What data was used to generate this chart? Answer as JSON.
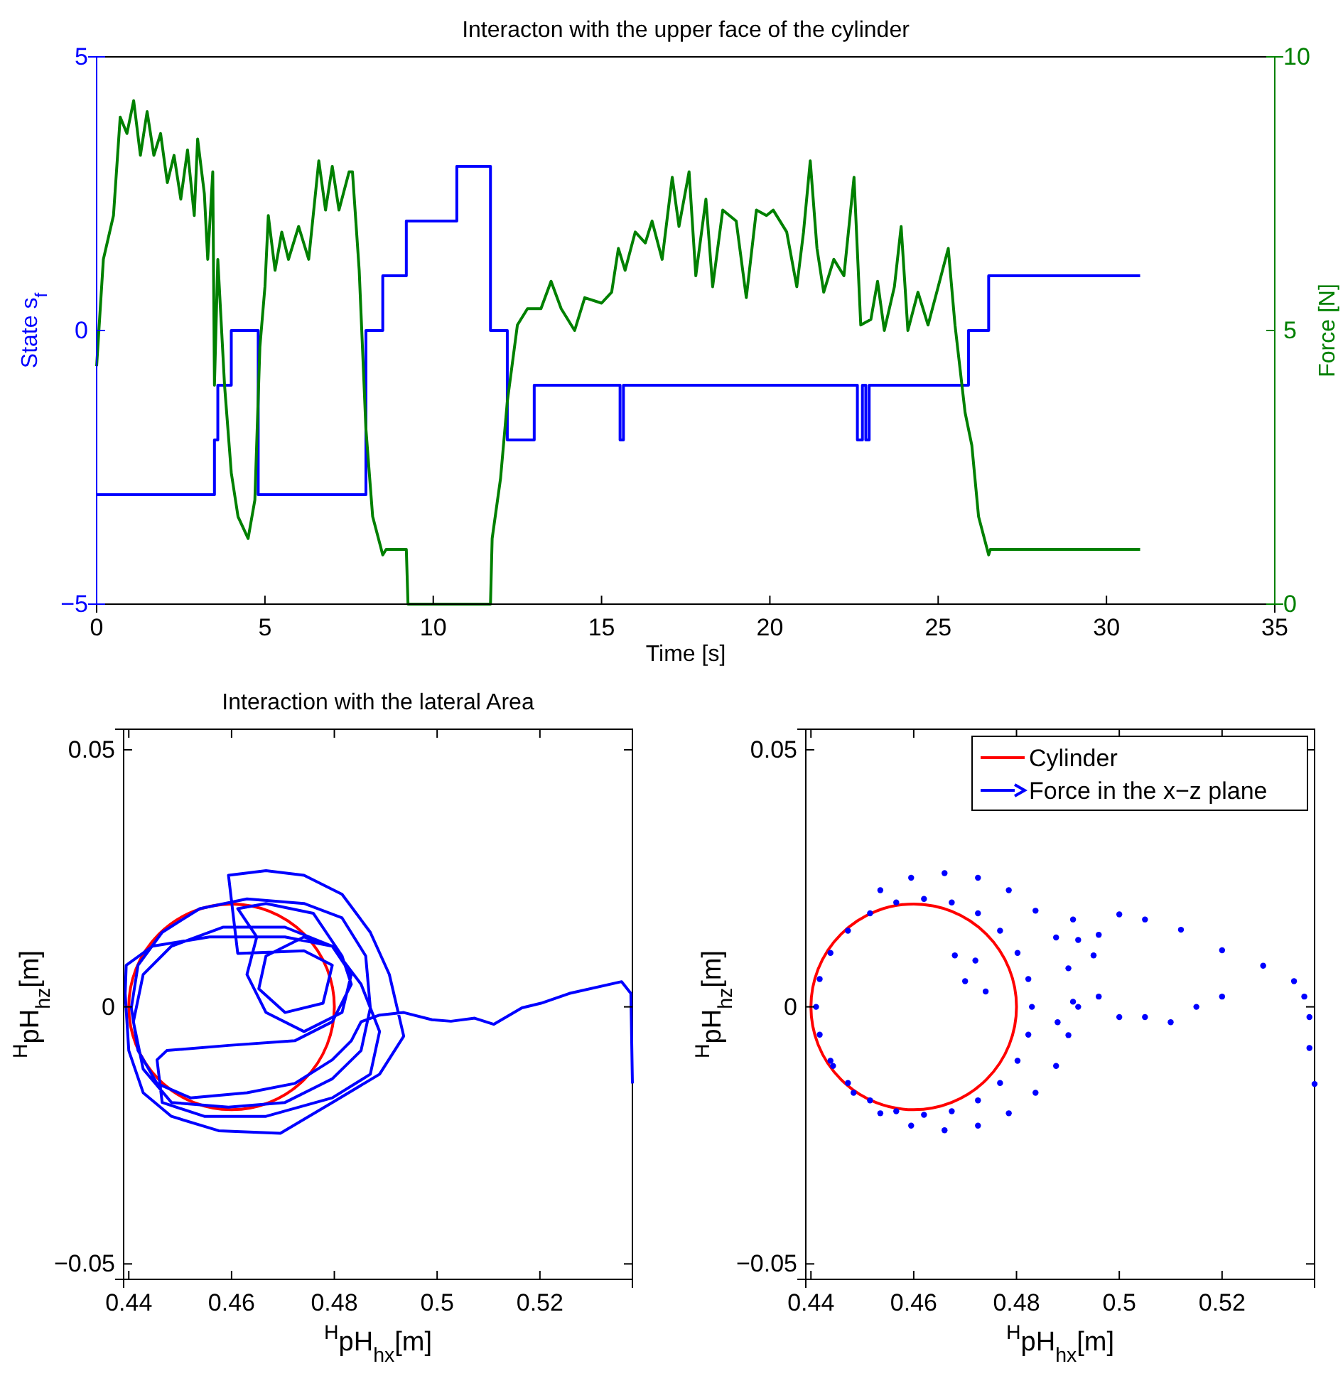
{
  "chart_data": [
    {
      "type": "step",
      "title": "Interacton with the upper face of the cylinder",
      "xlabel": "Time [s]",
      "ylabel": "State s$_{f}$",
      "y2label": "Force [N]",
      "xlim": [
        0,
        35
      ],
      "xticks": [
        0,
        5,
        10,
        15,
        20,
        25,
        30,
        35
      ],
      "ylim": [
        -5,
        5
      ],
      "yticks": [
        -5,
        0,
        5
      ],
      "y2lim": [
        0,
        10
      ],
      "y2ticks": [
        0,
        5,
        10
      ],
      "grid": false,
      "legend": false,
      "series": [
        {
          "color": "#0000ff",
          "x": [
            0,
            3.5,
            3.6,
            4.0,
            4.8,
            8.0,
            8.5,
            9.2,
            10.7,
            11.7,
            12.2,
            13.0,
            15.55,
            15.65,
            22.6,
            22.75,
            22.85,
            22.95,
            25.9,
            26.5,
            31
          ],
          "values": [
            -3,
            -2,
            -1,
            0,
            -3,
            0,
            1,
            2,
            3,
            0,
            -2,
            -1,
            -2,
            -1,
            -2,
            -1,
            -2,
            -1,
            0,
            1,
            1
          ]
        },
        {
          "type": "line",
          "axis": "y2",
          "color": "#008000",
          "x": [
            0,
            0.2,
            0.5,
            0.7,
            0.9,
            1.1,
            1.3,
            1.5,
            1.7,
            1.9,
            2.1,
            2.3,
            2.5,
            2.7,
            2.9,
            3.0,
            3.2,
            3.3,
            3.45,
            3.5,
            3.6,
            3.8,
            4.0,
            4.2,
            4.5,
            4.7,
            4.85,
            5.0,
            5.1,
            5.3,
            5.5,
            5.7,
            6.0,
            6.3,
            6.6,
            6.8,
            7.0,
            7.2,
            7.5,
            7.6,
            7.8,
            8.0,
            8.2,
            8.5,
            8.6,
            9.2,
            9.25,
            11.7,
            11.75,
            12.0,
            12.2,
            12.5,
            12.8,
            13.2,
            13.5,
            13.8,
            14.2,
            14.5,
            15.0,
            15.3,
            15.5,
            15.7,
            16.0,
            16.3,
            16.5,
            16.8,
            17.1,
            17.3,
            17.6,
            17.8,
            18.1,
            18.3,
            18.6,
            19.0,
            19.3,
            19.6,
            19.9,
            20.1,
            20.5,
            20.8,
            21.0,
            21.2,
            21.4,
            21.6,
            21.9,
            22.2,
            22.5,
            22.7,
            23.0,
            23.2,
            23.4,
            23.7,
            23.9,
            24.1,
            24.4,
            24.7,
            25.0,
            25.3,
            25.5,
            25.8,
            26.0,
            26.2,
            26.5,
            26.55,
            31.0
          ],
          "values": [
            4.35,
            6.3,
            7.1,
            8.9,
            8.6,
            9.2,
            8.2,
            9.0,
            8.2,
            8.6,
            7.7,
            8.2,
            7.4,
            8.3,
            7.1,
            8.5,
            7.5,
            6.3,
            7.9,
            4.0,
            6.3,
            4.0,
            2.4,
            1.6,
            1.2,
            1.9,
            4.7,
            5.8,
            7.1,
            6.1,
            6.8,
            6.3,
            6.9,
            6.3,
            8.1,
            7.2,
            8.0,
            7.2,
            7.9,
            7.9,
            6.1,
            3.2,
            1.6,
            0.9,
            1.0,
            1.0,
            0,
            0,
            1.2,
            2.3,
            3.7,
            5.1,
            5.4,
            5.4,
            5.9,
            5.4,
            5.0,
            5.6,
            5.5,
            5.7,
            6.5,
            6.1,
            6.8,
            6.6,
            7.0,
            6.3,
            7.8,
            6.9,
            7.9,
            6.0,
            7.4,
            5.8,
            7.2,
            7.0,
            5.6,
            7.2,
            7.1,
            7.2,
            6.8,
            5.8,
            6.8,
            8.1,
            6.5,
            5.7,
            6.3,
            6.0,
            7.8,
            5.1,
            5.2,
            5.9,
            5.0,
            5.8,
            6.9,
            5.0,
            5.7,
            5.1,
            5.8,
            6.5,
            5.1,
            3.5,
            2.9,
            1.6,
            0.9,
            1.0,
            1.0
          ]
        }
      ]
    },
    {
      "type": "line",
      "title": "Interaction with the lateral Area",
      "xlabel": "$^{H}$pH$_{hx}$[m]",
      "ylabel": "$^{H}$pH$_{hz}$[m]",
      "xlim": [
        0.439,
        0.538
      ],
      "xticks": [
        0.44,
        0.46,
        0.48,
        0.5,
        0.52
      ],
      "ylim": [
        -0.053,
        0.054
      ],
      "yticks": [
        -0.05,
        0,
        0.05
      ],
      "grid": false,
      "legend": false,
      "series": [
        {
          "color": "#0000ff",
          "x": [
            0.538,
            0.5377,
            0.5359,
            0.5257,
            0.5202,
            0.5165,
            0.511,
            0.5073,
            0.5027,
            0.499,
            0.4935,
            0.4888,
            0.4852,
            0.4833,
            0.4796,
            0.4723,
            0.463,
            0.452,
            0.4455,
            0.4418,
            0.4405,
            0.4418,
            0.4465,
            0.4538,
            0.463,
            0.4741,
            0.4815,
            0.4861,
            0.487,
            0.4852,
            0.4796,
            0.4704,
            0.4594,
            0.4483,
            0.4428,
            0.4409,
            0.4428,
            0.4483,
            0.4584,
            0.4704,
            0.4796,
            0.4852,
            0.4888,
            0.487,
            0.4796,
            0.4667,
            0.4547,
            0.4465,
            0.4455,
            0.4474,
            0.4594,
            0.4723,
            0.4796,
            0.4833,
            0.4815,
            0.4759,
            0.4667,
            0.4612,
            0.4649,
            0.463,
            0.4667,
            0.4741,
            0.4815,
            0.4833,
            0.4796,
            0.4741,
            0.4667,
            0.4653,
            0.4704,
            0.4778,
            0.4796,
            0.4741,
            0.4612,
            0.4594,
            0.4667,
            0.4741,
            0.4815,
            0.487,
            0.4907,
            0.4935,
            0.4888,
            0.4796,
            0.4695,
            0.4575,
            0.4483,
            0.4428,
            0.44,
            0.4393,
            0.4395,
            0.4446,
            0.4557,
            0.4704,
            0.4796
          ],
          "values": [
            -0.0149,
            0.0026,
            0.0049,
            0.0026,
            0.0007,
            -0.0002,
            -0.0034,
            -0.0022,
            -0.0028,
            -0.0025,
            -0.0011,
            -0.0016,
            -0.0029,
            -0.0066,
            -0.0103,
            -0.0149,
            -0.0167,
            -0.0177,
            -0.0149,
            -0.0085,
            -0.0002,
            0.0081,
            0.0145,
            0.0191,
            0.021,
            0.0201,
            0.0173,
            0.0099,
            -0.0002,
            -0.0085,
            -0.014,
            -0.0186,
            -0.0195,
            -0.0186,
            -0.0121,
            -0.0029,
            0.0063,
            0.0118,
            0.0155,
            0.0155,
            0.0118,
            0.0044,
            -0.0048,
            -0.0131,
            -0.0177,
            -0.0213,
            -0.0213,
            -0.0186,
            -0.0103,
            -0.0085,
            -0.0075,
            -0.0066,
            -0.0029,
            0.0044,
            0.0099,
            0.0182,
            0.0201,
            0.0191,
            0.0136,
            0.0063,
            -0.0011,
            -0.0048,
            -0.0011,
            0.0063,
            0.0118,
            0.0136,
            0.0099,
            0.0035,
            -0.0011,
            0.0007,
            0.0081,
            0.0109,
            0.0104,
            0.0256,
            0.0265,
            0.0256,
            0.0219,
            0.0145,
            0.0063,
            -0.0057,
            -0.0131,
            -0.0186,
            -0.0246,
            -0.0241,
            -0.0213,
            -0.0167,
            -0.0085,
            0.0026,
            0.0081,
            0.0118,
            0.0136,
            0.0136,
            0.0118
          ]
        }
      ]
    },
    {
      "type": "scatter",
      "xlabel": "$^{H}$pH$_{hx}$[m]",
      "ylabel": "$^{H}$pH$_{hz}$[m]",
      "xlim": [
        0.439,
        0.538
      ],
      "xticks": [
        0.44,
        0.46,
        0.48,
        0.5,
        0.52
      ],
      "ylim": [
        -0.053,
        0.054
      ],
      "yticks": [
        -0.05,
        0,
        0.05
      ],
      "grid": false,
      "legend": "top right",
      "annotations": [
        "Cylinder"
      ],
      "series": [
        {
          "name": "Force in the x−z plane",
          "marker": "circle",
          "color": "#0000ff",
          "x": [
            0.483,
            0.4823,
            0.4802,
            0.4768,
            0.4725,
            0.4674,
            0.462,
            0.4566,
            0.4515,
            0.4472,
            0.4438,
            0.4417,
            0.441,
            0.4417,
            0.4438,
            0.4472,
            0.4515,
            0.4566,
            0.462,
            0.4674,
            0.4725,
            0.4768,
            0.4802,
            0.4823,
            0.491,
            0.4901,
            0.4877,
            0.4837,
            0.4785,
            0.4725,
            0.466,
            0.4595,
            0.4535,
            0.4443,
            0.4483,
            0.4535,
            0.4595,
            0.466,
            0.4725,
            0.4785,
            0.4837,
            0.4877,
            0.4901,
            0.468,
            0.47,
            0.474,
            0.472,
            0.491,
            0.492,
            0.496,
            0.495,
            0.5,
            0.505,
            0.512,
            0.52,
            0.528,
            0.534,
            0.536,
            0.537,
            0.537,
            0.538,
            0.52,
            0.515,
            0.51,
            0.505,
            0.5,
            0.496,
            0.492,
            0.488
          ],
          "values": [
            0,
            0.0054,
            0.0105,
            0.0148,
            0.0182,
            0.0203,
            0.021,
            0.0203,
            0.0182,
            0.0148,
            0.0105,
            0.0054,
            0,
            -0.0054,
            -0.0105,
            -0.0148,
            -0.0182,
            -0.0203,
            -0.021,
            -0.0203,
            -0.0182,
            -0.0148,
            -0.0105,
            -0.0054,
            0.001,
            0.0075,
            0.0135,
            0.0187,
            0.0227,
            0.0251,
            0.026,
            0.0251,
            0.0227,
            -0.0115,
            -0.0167,
            -0.0207,
            -0.0231,
            -0.024,
            -0.0231,
            -0.0207,
            -0.0167,
            -0.0115,
            -0.0055,
            0.01,
            0.005,
            0.003,
            0.009,
            0.017,
            0.013,
            0.014,
            0.01,
            0.018,
            0.017,
            0.015,
            0.011,
            0.008,
            0.005,
            0.002,
            -0.002,
            -0.008,
            -0.015,
            0.002,
            0,
            -0.003,
            -0.002,
            -0.002,
            0.002,
            0,
            -0.003
          ]
        }
      ]
    }
  ]
}
